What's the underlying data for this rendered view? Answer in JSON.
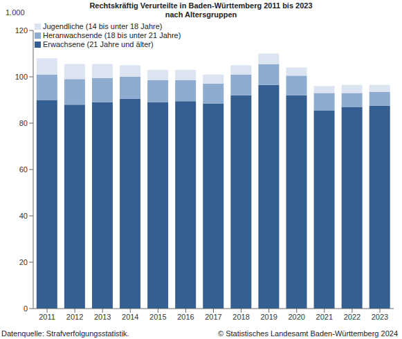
{
  "chart_data": {
    "type": "bar",
    "title": "Rechtskräftig Verurteilte in Baden-Württemberg 2011 bis 2023\nnach Altersgruppen",
    "ylabel": "1.000",
    "annotations": [
      "Datenquelle: Strafverfolgungsstatistik.",
      "© Statistisches Landesamt Baden-Württemberg 2024"
    ],
    "categories": [
      "2011",
      "2012",
      "2013",
      "2014",
      "2015",
      "2016",
      "2017",
      "2018",
      "2019",
      "2020",
      "2021",
      "2022",
      "2023"
    ],
    "series": [
      {
        "name": "Jugendliche (14 bis unter 18 Jahre)",
        "color": "#dbe4f0",
        "values": [
          7,
          6.5,
          6,
          5,
          4.5,
          4.5,
          4,
          4,
          4.5,
          3.5,
          3,
          3.5,
          3
        ]
      },
      {
        "name": "Heranwachsende (18 bis unter 21 Jahre)",
        "color": "#8eabd0",
        "values": [
          11,
          11,
          10.5,
          9.5,
          9.5,
          9,
          8.5,
          9,
          9,
          8.5,
          7.5,
          6,
          6
        ]
      },
      {
        "name": "Erwachsene (21 Jahre und älter)",
        "color": "#365f91",
        "values": [
          90,
          88,
          89,
          90.5,
          89,
          89.5,
          88.5,
          92,
          96.5,
          92,
          85.5,
          87,
          87.5
        ]
      }
    ],
    "ylim": [
      0,
      120
    ],
    "yticks": [
      0,
      20,
      40,
      60,
      80,
      100,
      120
    ],
    "grid": false,
    "stacked": true,
    "legend": "upper left"
  }
}
